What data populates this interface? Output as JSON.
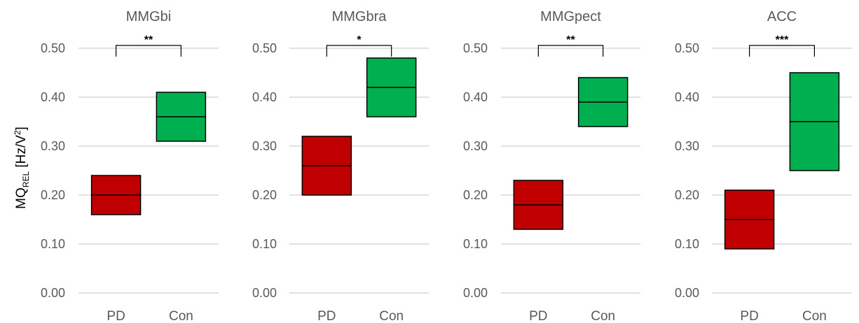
{
  "y_axis": {
    "label_main": "MQ",
    "label_sub": "REL",
    "label_unit_open": " [Hz/V",
    "label_unit_sup": "2",
    "label_unit_close": "]"
  },
  "colors": {
    "PD": "#c00000",
    "Con": "#00b050",
    "grid": "#d9d9d9",
    "bracket": "#000000"
  },
  "chart_data": [
    {
      "type": "box",
      "title": "MMGbi",
      "categories": [
        "PD",
        "Con"
      ],
      "boxes": [
        {
          "category": "PD",
          "q1": 0.16,
          "median": 0.2,
          "q3": 0.24
        },
        {
          "category": "Con",
          "q1": 0.31,
          "median": 0.36,
          "q3": 0.41
        }
      ],
      "significance": "**",
      "ylim": [
        0,
        0.5
      ],
      "yticks": [
        "0.00",
        "0.10",
        "0.20",
        "0.30",
        "0.40",
        "0.50"
      ],
      "grid": true
    },
    {
      "type": "box",
      "title": "MMGbra",
      "categories": [
        "PD",
        "Con"
      ],
      "boxes": [
        {
          "category": "PD",
          "q1": 0.2,
          "median": 0.26,
          "q3": 0.32
        },
        {
          "category": "Con",
          "q1": 0.36,
          "median": 0.42,
          "q3": 0.48
        }
      ],
      "significance": "*",
      "ylim": [
        0,
        0.5
      ],
      "yticks": [
        "0.00",
        "0.10",
        "0.20",
        "0.30",
        "0.40",
        "0.50"
      ],
      "grid": true
    },
    {
      "type": "box",
      "title": "MMGpect",
      "categories": [
        "PD",
        "Con"
      ],
      "boxes": [
        {
          "category": "PD",
          "q1": 0.13,
          "median": 0.18,
          "q3": 0.23
        },
        {
          "category": "Con",
          "q1": 0.34,
          "median": 0.39,
          "q3": 0.44
        }
      ],
      "significance": "**",
      "ylim": [
        0,
        0.5
      ],
      "yticks": [
        "0.00",
        "0.10",
        "0.20",
        "0.30",
        "0.40",
        "0.50"
      ],
      "grid": true
    },
    {
      "type": "box",
      "title": "ACC",
      "categories": [
        "PD",
        "Con"
      ],
      "boxes": [
        {
          "category": "PD",
          "q1": 0.09,
          "median": 0.15,
          "q3": 0.21
        },
        {
          "category": "Con",
          "q1": 0.25,
          "median": 0.35,
          "q3": 0.45
        }
      ],
      "significance": "***",
      "ylim": [
        0,
        0.5
      ],
      "yticks": [
        "0.00",
        "0.10",
        "0.20",
        "0.30",
        "0.40",
        "0.50"
      ],
      "grid": true
    }
  ]
}
